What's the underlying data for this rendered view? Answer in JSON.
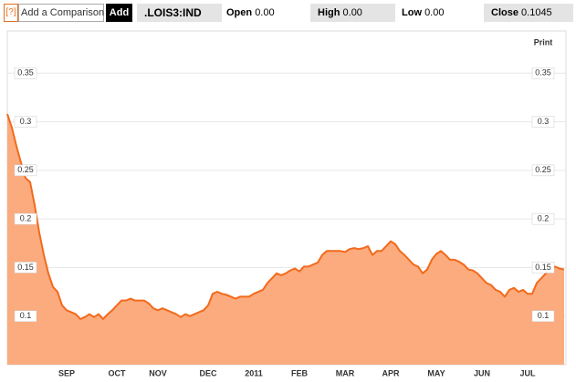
{
  "toolbar": {
    "help": "[?]",
    "comparison_placeholder": "Add a Comparison",
    "add_button": "Add",
    "symbol": ".LOIS3:IND",
    "open_label": "Open",
    "open_value": "0.00",
    "high_label": "High",
    "high_value": "0.00",
    "low_label": "Low",
    "low_value": "0.00",
    "close_label": "Close",
    "close_value": "0.1045"
  },
  "print": "Print",
  "chart_data": {
    "type": "area",
    "categories": [
      null,
      null,
      null,
      null,
      null,
      null,
      null,
      null,
      null,
      null,
      null,
      null,
      null,
      "SEP",
      null,
      null,
      null,
      null,
      null,
      null,
      null,
      null,
      null,
      null,
      "OCT",
      null,
      null,
      null,
      null,
      null,
      null,
      null,
      null,
      "NOV",
      null,
      null,
      null,
      null,
      null,
      null,
      null,
      null,
      null,
      null,
      "DEC",
      null,
      null,
      null,
      null,
      null,
      null,
      null,
      null,
      null,
      "2011",
      null,
      null,
      null,
      null,
      null,
      null,
      null,
      null,
      null,
      "FEB",
      null,
      null,
      null,
      null,
      null,
      null,
      null,
      null,
      null,
      "MAR",
      null,
      null,
      null,
      null,
      null,
      null,
      null,
      null,
      null,
      "APR",
      null,
      null,
      null,
      null,
      null,
      null,
      null,
      null,
      null,
      "MAY",
      null,
      null,
      null,
      null,
      null,
      null,
      null,
      null,
      null,
      "JUN",
      null,
      null,
      null,
      null,
      null,
      null,
      null,
      null,
      null,
      "JUL",
      null,
      null,
      null,
      null,
      null,
      null,
      null,
      null
    ],
    "values": [
      0.308,
      0.294,
      0.275,
      0.258,
      0.242,
      0.238,
      0.214,
      0.186,
      0.163,
      0.144,
      0.13,
      0.125,
      0.111,
      0.106,
      0.104,
      0.102,
      0.097,
      0.099,
      0.102,
      0.099,
      0.102,
      0.097,
      0.102,
      0.106,
      0.111,
      0.116,
      0.116,
      0.118,
      0.116,
      0.116,
      0.116,
      0.113,
      0.108,
      0.106,
      0.108,
      0.106,
      0.104,
      0.102,
      0.099,
      0.102,
      0.1,
      0.102,
      0.104,
      0.106,
      0.111,
      0.123,
      0.125,
      0.123,
      0.122,
      0.12,
      0.118,
      0.12,
      0.12,
      0.12,
      0.123,
      0.125,
      0.127,
      0.134,
      0.139,
      0.144,
      0.142,
      0.144,
      0.147,
      0.149,
      0.146,
      0.151,
      0.151,
      0.153,
      0.155,
      0.163,
      0.167,
      0.167,
      0.167,
      0.167,
      0.166,
      0.169,
      0.17,
      0.169,
      0.17,
      0.172,
      0.163,
      0.167,
      0.167,
      0.172,
      0.177,
      0.174,
      0.167,
      0.163,
      0.158,
      0.153,
      0.151,
      0.144,
      0.148,
      0.158,
      0.164,
      0.167,
      0.163,
      0.158,
      0.158,
      0.156,
      0.153,
      0.148,
      0.147,
      0.144,
      0.139,
      0.134,
      0.132,
      0.127,
      0.125,
      0.12,
      0.127,
      0.129,
      0.125,
      0.127,
      0.123,
      0.123,
      0.134,
      0.139,
      0.144,
      0.147,
      0.151,
      0.149,
      0.148
    ],
    "color": "#f26a1b",
    "fill_color": "#fbab7e",
    "ylim": [
      0.05,
      0.4
    ],
    "yticks": [
      0.1,
      0.15,
      0.2,
      0.25,
      0.3,
      0.35
    ],
    "grid": true
  }
}
